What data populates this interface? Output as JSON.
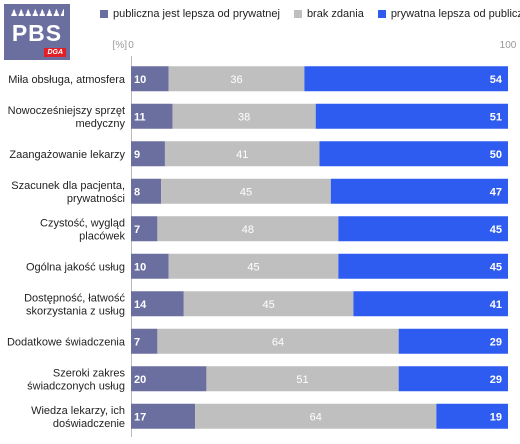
{
  "logo": {
    "text": "PBS",
    "sub": "DGA"
  },
  "colors": {
    "public": "#6b6fa0",
    "neutral": "#bfbfbf",
    "private": "#2e5cf0"
  },
  "chart_data": {
    "type": "bar",
    "stacked": true,
    "orientation": "horizontal",
    "unit_label": "[%]",
    "xlim": [
      0,
      100
    ],
    "x_ticks": [
      "0",
      "100"
    ],
    "legend_position": "top",
    "categories": [
      [
        "Miła obsługa, atmosfera"
      ],
      [
        "Nowocześniejszy sprzęt",
        "medyczny"
      ],
      [
        "Zaangażowanie lekarzy"
      ],
      [
        "Szacunek dla pacjenta,",
        "prywatności"
      ],
      [
        "Czystość, wygląd",
        "placówek"
      ],
      [
        "Ogólna jakość usług"
      ],
      [
        "Dostępność, łatwość",
        "skorzystania z usług"
      ],
      [
        "Dodatkowe świadczenia"
      ],
      [
        "Szeroki zakres",
        "świadczonych usług"
      ],
      [
        "Wiedza lekarzy, ich",
        "doświadczenie"
      ]
    ],
    "series": [
      {
        "name": "publiczna jest lepsza od prywatnej",
        "values": [
          10,
          11,
          9,
          8,
          7,
          10,
          14,
          7,
          20,
          17
        ]
      },
      {
        "name": "brak zdania",
        "values": [
          36,
          38,
          41,
          45,
          48,
          45,
          45,
          64,
          51,
          64
        ]
      },
      {
        "name": "prywatna lepsza od publicznej",
        "values": [
          54,
          51,
          50,
          47,
          45,
          45,
          41,
          29,
          29,
          19
        ]
      }
    ]
  }
}
